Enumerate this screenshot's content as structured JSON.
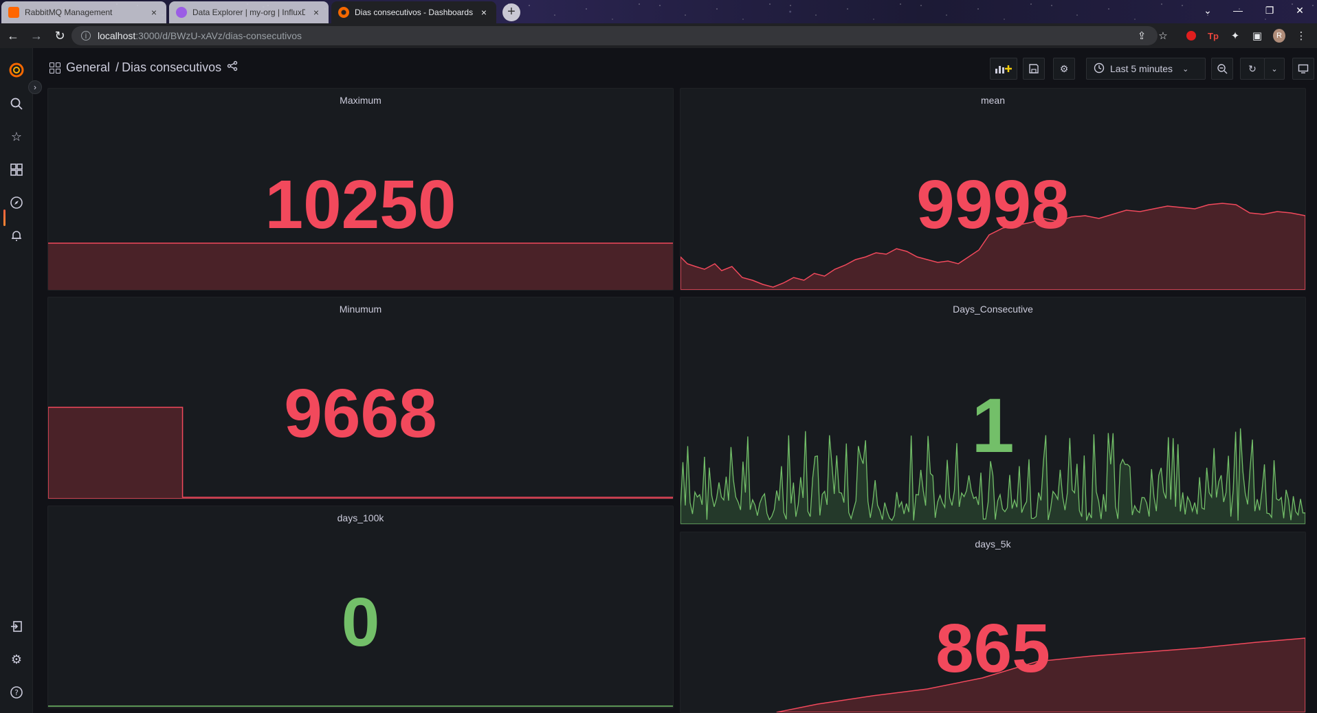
{
  "browser": {
    "tabs": [
      {
        "label": "RabbitMQ Management",
        "close": "×",
        "color": "#ff6600"
      },
      {
        "label": "Data Explorer | my-org | InfluxDB",
        "close": "×",
        "color": "#9b5de5"
      },
      {
        "label": "Dias consecutivos - Dashboards",
        "close": "×",
        "color": "#f46800"
      }
    ],
    "new_tab": "+",
    "url_host": "localhost",
    "url_path": ":3000/d/BWzU-xAVz/dias-consecutivos",
    "profile_initial": "R"
  },
  "header": {
    "folder": "General",
    "separator": "/",
    "title": "Dias consecutivos",
    "time_range": "Last 5 minutes"
  },
  "colors": {
    "red": "#f2495c",
    "green": "#73bf69",
    "red_fill": "#4a2228",
    "green_fill": "#24392a"
  },
  "panels": {
    "maximum": {
      "title": "Maximum",
      "value": "10250",
      "color": "red"
    },
    "mean": {
      "title": "mean",
      "value": "9998",
      "color": "red"
    },
    "minumum": {
      "title": "Minumum",
      "value": "9668",
      "color": "red"
    },
    "days_consecutive": {
      "title": "Days_Consecutive",
      "value": "1",
      "color": "green"
    },
    "days_100k": {
      "title": "days_100k",
      "value": "0",
      "color": "green"
    },
    "days_5k": {
      "title": "days_5k",
      "value": "865",
      "color": "red"
    }
  }
}
